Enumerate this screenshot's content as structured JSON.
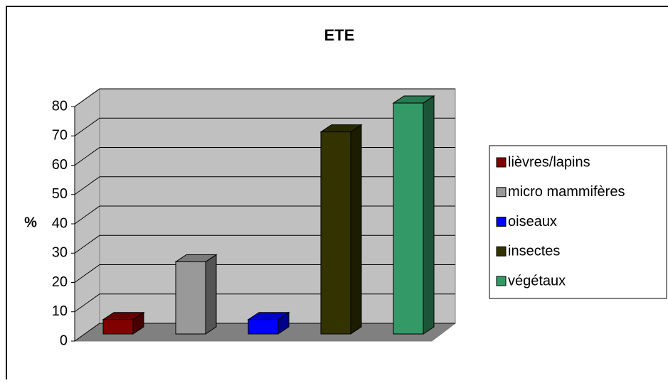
{
  "chart_data": {
    "type": "bar3d",
    "title": "ETE",
    "y_label": "%",
    "categories": [
      null
    ],
    "series": [
      {
        "name": "lièvres/lapins",
        "color": "#800000",
        "values": [
          5
        ]
      },
      {
        "name": "micro mammifères",
        "color": "#999999",
        "values": [
          25
        ]
      },
      {
        "name": "oiseaux",
        "color": "#0000ff",
        "values": [
          5
        ]
      },
      {
        "name": "insectes",
        "color": "#333300",
        "values": [
          70
        ]
      },
      {
        "name": "végétaux",
        "color": "#339966",
        "values": [
          80
        ]
      }
    ],
    "ylim": [
      0,
      80
    ],
    "yticks": [
      0,
      10,
      20,
      30,
      40,
      50,
      60,
      70,
      80
    ],
    "grid": true,
    "legend": "right"
  }
}
